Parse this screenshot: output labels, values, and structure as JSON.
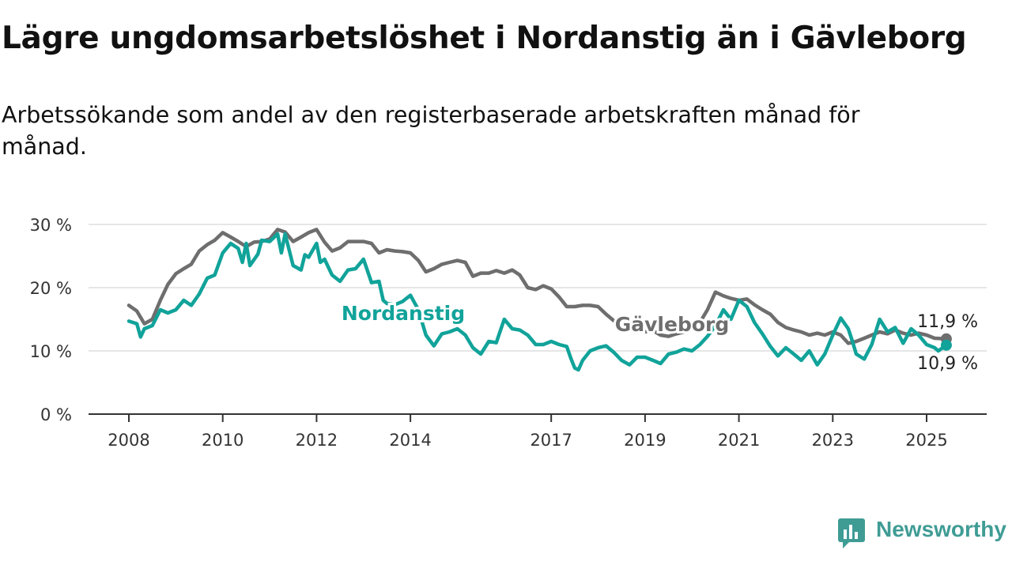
{
  "title": "Lägre ungdomsarbetslöshet i Nordanstig än i Gävleborg",
  "subtitle": "Arbetssökande som andel av den registerbaserade arbetskraften månad för månad.",
  "logo": {
    "text": "Newsworthy",
    "color": "#3f9c95"
  },
  "chart_data": {
    "type": "line",
    "title": "Lägre ungdomsarbetslöshet i Nordanstig än i Gävleborg",
    "subtitle": "Arbetssökande som andel av den registerbaserade arbetskraften månad för månad.",
    "xlabel": "",
    "ylabel": "",
    "ylim": [
      0,
      30
    ],
    "xlim": [
      2008,
      2025.75
    ],
    "y_ticks": [
      0,
      10,
      20,
      30
    ],
    "y_tick_labels": [
      "0 %",
      "10 %",
      "20 %",
      "30 %"
    ],
    "x_ticks": [
      2008,
      2010,
      2012,
      2014,
      2017,
      2019,
      2021,
      2023,
      2025
    ],
    "x_tick_labels": [
      "2008",
      "2010",
      "2012",
      "2014",
      "2017",
      "2019",
      "2021",
      "2023",
      "2025"
    ],
    "grid": "horizontal",
    "legend": "inline labels",
    "series": [
      {
        "name": "Gävleborg",
        "color": "#6e6e6e",
        "end_label": "11,9 %",
        "points": [
          [
            2008.0,
            17.2
          ],
          [
            2008.17,
            16.3
          ],
          [
            2008.33,
            14.3
          ],
          [
            2008.5,
            15.0
          ],
          [
            2008.67,
            18.0
          ],
          [
            2008.83,
            20.5
          ],
          [
            2009.0,
            22.2
          ],
          [
            2009.17,
            23.0
          ],
          [
            2009.33,
            23.7
          ],
          [
            2009.5,
            25.8
          ],
          [
            2009.67,
            26.8
          ],
          [
            2009.83,
            27.5
          ],
          [
            2010.0,
            28.7
          ],
          [
            2010.17,
            28.0
          ],
          [
            2010.33,
            27.3
          ],
          [
            2010.5,
            26.5
          ],
          [
            2010.67,
            27.2
          ],
          [
            2010.83,
            27.3
          ],
          [
            2011.0,
            27.7
          ],
          [
            2011.17,
            29.2
          ],
          [
            2011.33,
            28.8
          ],
          [
            2011.5,
            27.3
          ],
          [
            2011.67,
            28.0
          ],
          [
            2011.83,
            28.7
          ],
          [
            2012.0,
            29.2
          ],
          [
            2012.17,
            27.2
          ],
          [
            2012.33,
            25.8
          ],
          [
            2012.5,
            26.3
          ],
          [
            2012.67,
            27.3
          ],
          [
            2012.83,
            27.3
          ],
          [
            2013.0,
            27.3
          ],
          [
            2013.17,
            27.0
          ],
          [
            2013.33,
            25.5
          ],
          [
            2013.5,
            26.0
          ],
          [
            2013.67,
            25.8
          ],
          [
            2013.83,
            25.7
          ],
          [
            2014.0,
            25.5
          ],
          [
            2014.17,
            24.3
          ],
          [
            2014.33,
            22.5
          ],
          [
            2014.5,
            23.0
          ],
          [
            2014.67,
            23.7
          ],
          [
            2014.83,
            24.0
          ],
          [
            2015.0,
            24.3
          ],
          [
            2015.17,
            24.0
          ],
          [
            2015.33,
            21.8
          ],
          [
            2015.5,
            22.3
          ],
          [
            2015.67,
            22.3
          ],
          [
            2015.83,
            22.7
          ],
          [
            2016.0,
            22.3
          ],
          [
            2016.17,
            22.8
          ],
          [
            2016.33,
            22.0
          ],
          [
            2016.5,
            20.0
          ],
          [
            2016.67,
            19.7
          ],
          [
            2016.83,
            20.3
          ],
          [
            2017.0,
            19.8
          ],
          [
            2017.17,
            18.5
          ],
          [
            2017.33,
            17.0
          ],
          [
            2017.5,
            17.0
          ],
          [
            2017.67,
            17.2
          ],
          [
            2017.83,
            17.2
          ],
          [
            2018.0,
            17.0
          ],
          [
            2018.17,
            15.8
          ],
          [
            2018.33,
            14.8
          ],
          [
            2018.5,
            14.3
          ],
          [
            2018.67,
            13.8
          ],
          [
            2018.83,
            13.5
          ],
          [
            2019.0,
            13.0
          ],
          [
            2019.17,
            13.2
          ],
          [
            2019.33,
            12.5
          ],
          [
            2019.5,
            12.3
          ],
          [
            2019.67,
            12.7
          ],
          [
            2019.83,
            13.0
          ],
          [
            2020.0,
            13.8
          ],
          [
            2020.17,
            14.5
          ],
          [
            2020.33,
            16.5
          ],
          [
            2020.5,
            19.3
          ],
          [
            2020.67,
            18.7
          ],
          [
            2020.83,
            18.3
          ],
          [
            2021.0,
            18.0
          ],
          [
            2021.17,
            18.2
          ],
          [
            2021.33,
            17.3
          ],
          [
            2021.5,
            16.5
          ],
          [
            2021.67,
            15.8
          ],
          [
            2021.83,
            14.5
          ],
          [
            2022.0,
            13.7
          ],
          [
            2022.17,
            13.3
          ],
          [
            2022.33,
            13.0
          ],
          [
            2022.5,
            12.5
          ],
          [
            2022.67,
            12.8
          ],
          [
            2022.83,
            12.5
          ],
          [
            2023.0,
            13.0
          ],
          [
            2023.17,
            12.5
          ],
          [
            2023.33,
            11.2
          ],
          [
            2023.5,
            11.5
          ],
          [
            2023.67,
            12.0
          ],
          [
            2023.83,
            12.5
          ],
          [
            2024.0,
            13.0
          ],
          [
            2024.17,
            12.7
          ],
          [
            2024.33,
            13.3
          ],
          [
            2024.5,
            12.8
          ],
          [
            2024.67,
            12.5
          ],
          [
            2024.83,
            12.8
          ],
          [
            2025.0,
            12.5
          ],
          [
            2025.17,
            12.0
          ],
          [
            2025.42,
            11.9
          ]
        ]
      },
      {
        "name": "Nordanstig",
        "color": "#11a39a",
        "end_label": "10,9 %",
        "points": [
          [
            2008.0,
            14.7
          ],
          [
            2008.17,
            14.3
          ],
          [
            2008.25,
            12.2
          ],
          [
            2008.33,
            13.5
          ],
          [
            2008.5,
            14.0
          ],
          [
            2008.67,
            16.5
          ],
          [
            2008.83,
            16.0
          ],
          [
            2009.0,
            16.5
          ],
          [
            2009.17,
            18.0
          ],
          [
            2009.33,
            17.2
          ],
          [
            2009.5,
            19.0
          ],
          [
            2009.67,
            21.5
          ],
          [
            2009.83,
            22.0
          ],
          [
            2010.0,
            25.5
          ],
          [
            2010.17,
            27.0
          ],
          [
            2010.33,
            26.2
          ],
          [
            2010.42,
            24.0
          ],
          [
            2010.5,
            27.0
          ],
          [
            2010.58,
            23.5
          ],
          [
            2010.75,
            25.3
          ],
          [
            2010.83,
            27.5
          ],
          [
            2011.0,
            27.3
          ],
          [
            2011.17,
            28.5
          ],
          [
            2011.25,
            25.5
          ],
          [
            2011.33,
            28.5
          ],
          [
            2011.5,
            23.5
          ],
          [
            2011.67,
            22.8
          ],
          [
            2011.75,
            25.2
          ],
          [
            2011.83,
            24.8
          ],
          [
            2012.0,
            27.0
          ],
          [
            2012.08,
            24.0
          ],
          [
            2012.17,
            24.5
          ],
          [
            2012.33,
            22.0
          ],
          [
            2012.5,
            21.0
          ],
          [
            2012.67,
            22.8
          ],
          [
            2012.83,
            23.0
          ],
          [
            2013.0,
            24.5
          ],
          [
            2013.17,
            20.8
          ],
          [
            2013.33,
            21.0
          ],
          [
            2013.42,
            18.0
          ],
          [
            2013.5,
            17.5
          ],
          [
            2013.67,
            17.3
          ],
          [
            2013.83,
            17.8
          ],
          [
            2014.0,
            18.8
          ],
          [
            2014.17,
            16.5
          ],
          [
            2014.33,
            12.5
          ],
          [
            2014.5,
            10.8
          ],
          [
            2014.67,
            12.7
          ],
          [
            2014.83,
            13.0
          ],
          [
            2015.0,
            13.5
          ],
          [
            2015.17,
            12.5
          ],
          [
            2015.33,
            10.5
          ],
          [
            2015.5,
            9.5
          ],
          [
            2015.67,
            11.5
          ],
          [
            2015.83,
            11.3
          ],
          [
            2016.0,
            15.0
          ],
          [
            2016.17,
            13.5
          ],
          [
            2016.33,
            13.3
          ],
          [
            2016.5,
            12.5
          ],
          [
            2016.67,
            11.0
          ],
          [
            2016.83,
            11.0
          ],
          [
            2017.0,
            11.5
          ],
          [
            2017.17,
            11.0
          ],
          [
            2017.33,
            10.7
          ],
          [
            2017.42,
            8.8
          ],
          [
            2017.5,
            7.3
          ],
          [
            2017.58,
            7.0
          ],
          [
            2017.67,
            8.5
          ],
          [
            2017.83,
            10.0
          ],
          [
            2018.0,
            10.5
          ],
          [
            2018.17,
            10.8
          ],
          [
            2018.33,
            9.8
          ],
          [
            2018.5,
            8.5
          ],
          [
            2018.67,
            7.8
          ],
          [
            2018.83,
            9.0
          ],
          [
            2019.0,
            9.0
          ],
          [
            2019.17,
            8.5
          ],
          [
            2019.33,
            8.0
          ],
          [
            2019.5,
            9.5
          ],
          [
            2019.67,
            9.8
          ],
          [
            2019.83,
            10.3
          ],
          [
            2020.0,
            10.0
          ],
          [
            2020.17,
            11.0
          ],
          [
            2020.33,
            12.3
          ],
          [
            2020.5,
            14.0
          ],
          [
            2020.67,
            16.5
          ],
          [
            2020.83,
            15.0
          ],
          [
            2021.0,
            18.0
          ],
          [
            2021.17,
            17.0
          ],
          [
            2021.33,
            14.5
          ],
          [
            2021.5,
            12.7
          ],
          [
            2021.67,
            10.7
          ],
          [
            2021.83,
            9.2
          ],
          [
            2022.0,
            10.5
          ],
          [
            2022.17,
            9.5
          ],
          [
            2022.33,
            8.5
          ],
          [
            2022.5,
            10.0
          ],
          [
            2022.67,
            7.8
          ],
          [
            2022.83,
            9.5
          ],
          [
            2023.0,
            12.5
          ],
          [
            2023.17,
            15.2
          ],
          [
            2023.33,
            13.5
          ],
          [
            2023.42,
            11.5
          ],
          [
            2023.5,
            9.5
          ],
          [
            2023.67,
            8.7
          ],
          [
            2023.83,
            11.0
          ],
          [
            2024.0,
            15.0
          ],
          [
            2024.17,
            13.0
          ],
          [
            2024.33,
            13.7
          ],
          [
            2024.5,
            11.2
          ],
          [
            2024.67,
            13.5
          ],
          [
            2024.83,
            12.5
          ],
          [
            2025.0,
            11.0
          ],
          [
            2025.17,
            10.5
          ],
          [
            2025.25,
            10.0
          ],
          [
            2025.42,
            10.9
          ]
        ]
      }
    ],
    "inline_labels": [
      {
        "series": "Nordanstig",
        "text": "Nordanstig"
      },
      {
        "series": "Gävleborg",
        "text": "Gävleborg"
      }
    ]
  }
}
